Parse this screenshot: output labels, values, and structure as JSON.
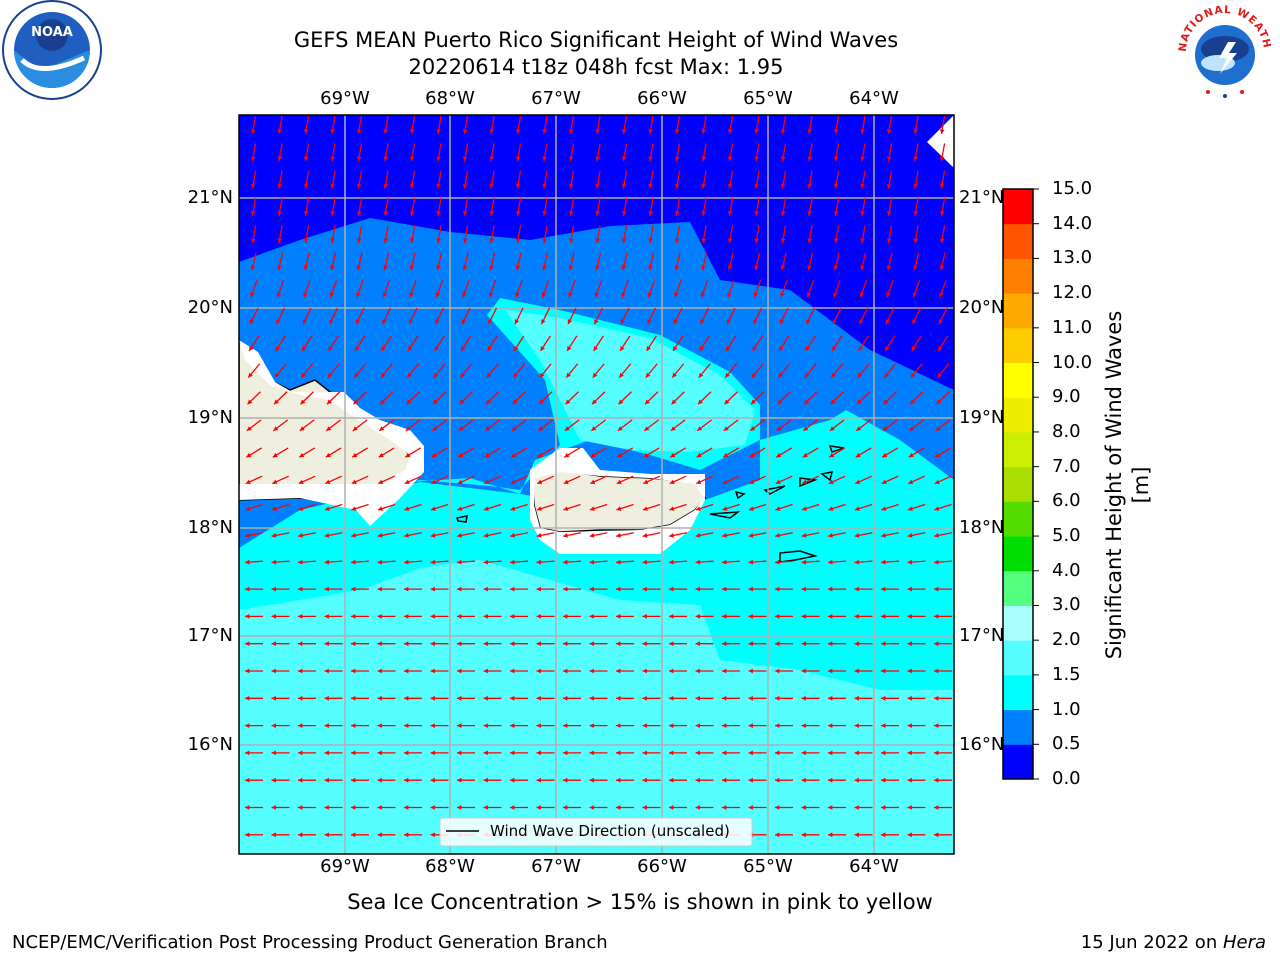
{
  "title": {
    "line1": "GEFS MEAN Puerto Rico Significant Height of Wind Waves",
    "line2": "20220614 t18z 048h fcst   Max: 1.95"
  },
  "colors": {
    "land": "#efefdf",
    "arrow": "#ff0000",
    "grid": "#b0b0b0",
    "coast": "#000000"
  },
  "map": {
    "lon_labels": [
      "69°W",
      "68°W",
      "67°W",
      "66°W",
      "65°W",
      "64°W"
    ],
    "lat_labels": [
      "21°N",
      "20°N",
      "19°N",
      "18°N",
      "17°N",
      "16°N"
    ],
    "legend_label": "Wind Wave Direction (unscaled)"
  },
  "colorbar": {
    "title": "Significant Height of Wind Waves [m]",
    "levels": [
      "0.0",
      "0.5",
      "1.0",
      "1.5",
      "2.0",
      "3.0",
      "4.0",
      "5.0",
      "6.0",
      "7.0",
      "8.0",
      "9.0",
      "10.0",
      "11.0",
      "12.0",
      "13.0",
      "14.0",
      "15.0"
    ],
    "colors": [
      "#0000ff",
      "#0080ff",
      "#00ffff",
      "#55ffff",
      "#aaffff",
      "#55ff80",
      "#00dd00",
      "#55dd00",
      "#aadd00",
      "#ccee00",
      "#eeee00",
      "#ffff00",
      "#ffcc00",
      "#ffaa00",
      "#ff8000",
      "#ff5500",
      "#ff0000"
    ]
  },
  "logos": {
    "noaa_text": "NOAA",
    "nws_text": "NATIONAL WEATHER SERVICE"
  },
  "footer": {
    "ice_note": "Sea Ice Concentration > 15% is shown in pink to yellow",
    "branch": "NCEP/EMC/Verification Post Processing Product Generation Branch",
    "date_prefix": "15 Jun 2022 on ",
    "host": "Hera"
  }
}
